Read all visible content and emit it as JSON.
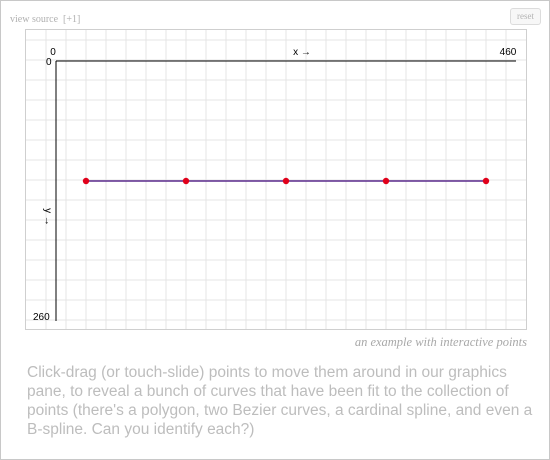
{
  "header": {
    "view_source_label": "view source",
    "expand_label": "[+1]",
    "reset_label": "reset"
  },
  "graph": {
    "x_axis_label": "x →",
    "y_axis_label": "y →",
    "x_min_label": "0",
    "x_max_label": "460",
    "y_min_label": "0",
    "y_max_label": "260",
    "x_range": [
      0,
      460
    ],
    "y_range": [
      0,
      260
    ],
    "grid": true,
    "curve_color": "#5a2a8c",
    "point_color": "#e0001a",
    "grid_color": "#e4e4e4",
    "points": [
      {
        "x": 30,
        "y": 120
      },
      {
        "x": 130,
        "y": 120
      },
      {
        "x": 230,
        "y": 120
      },
      {
        "x": 330,
        "y": 120
      },
      {
        "x": 430,
        "y": 120
      }
    ]
  },
  "caption": "an example with interactive points",
  "description": "Click-drag (or touch-slide) points to move them around in our graphics pane, to reveal a bunch of curves that have been fit to the collection of points (there's a polygon, two Bezier curves, a cardinal spline, and even a B-spline. Can you identify each?)"
}
